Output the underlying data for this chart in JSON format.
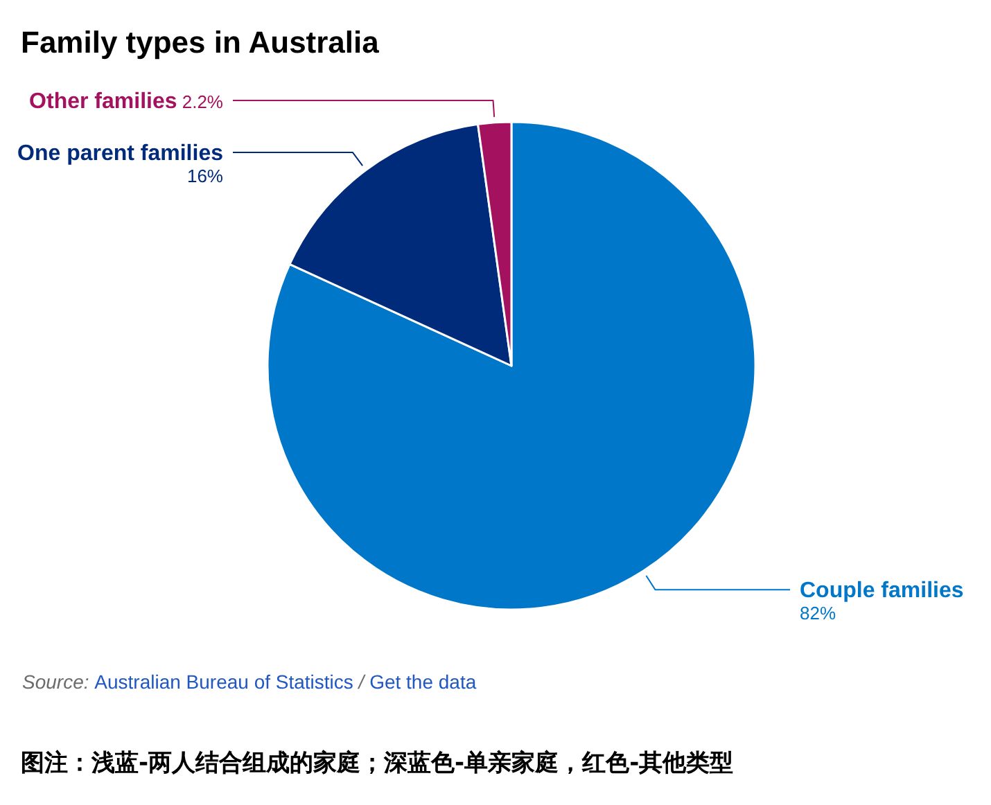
{
  "chart_data": {
    "type": "pie",
    "title": "Family types in Australia",
    "categories": [
      "Couple families",
      "One parent families",
      "Other families"
    ],
    "values": [
      82,
      16,
      2.2
    ],
    "value_labels": [
      "82%",
      "16%",
      "2.2%"
    ],
    "colors": [
      "#0077c8",
      "#002a7a",
      "#a3115f"
    ],
    "annotations": [
      "Source: Australian Bureau of Statistics / Get the data",
      "图注：浅蓝-两人结合组成的家庭；深蓝色-单亲家庭，红色-其他类型"
    ]
  }
}
